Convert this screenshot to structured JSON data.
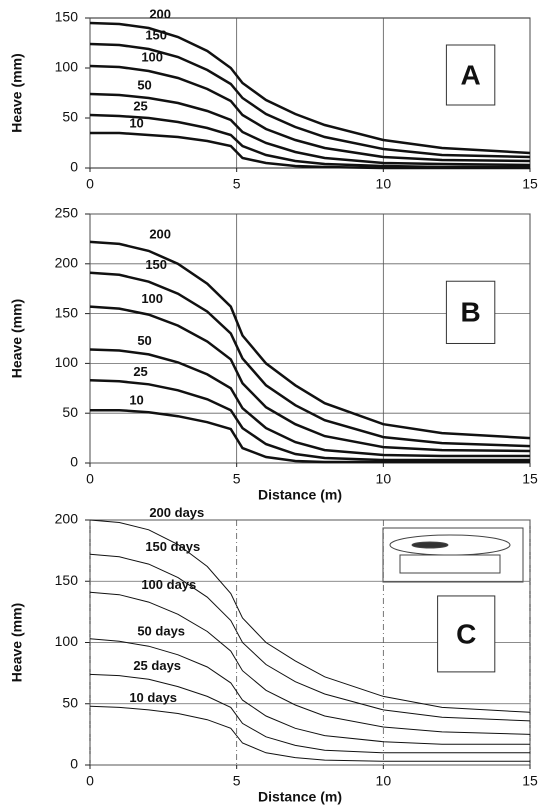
{
  "chart_data": [
    {
      "type": "line",
      "panel_label": "A",
      "ylabel": "Heave (mm)",
      "grid": "x",
      "line_width": 2.5,
      "color": "#111111",
      "x": [
        0,
        1,
        2,
        3,
        4,
        4.8,
        5.2,
        6,
        7,
        8,
        10,
        12,
        15
      ],
      "xlim": [
        0,
        15
      ],
      "xticks": [
        0,
        5,
        10,
        15
      ],
      "ylim": [
        0,
        150
      ],
      "yticks": [
        0,
        50,
        100,
        150
      ],
      "series": [
        {
          "name": "200",
          "values": [
            145,
            144,
            140,
            131,
            117,
            100,
            85,
            68,
            54,
            43,
            28,
            20,
            15
          ]
        },
        {
          "name": "150",
          "values": [
            124,
            123,
            119,
            111,
            98,
            84,
            70,
            54,
            41,
            31,
            19,
            13,
            11
          ]
        },
        {
          "name": "100",
          "values": [
            102,
            101,
            97,
            90,
            79,
            67,
            53,
            39,
            28,
            20,
            11,
            8,
            7
          ]
        },
        {
          "name": "50",
          "values": [
            74,
            73,
            70,
            65,
            57,
            48,
            36,
            25,
            16,
            10,
            5,
            4,
            3
          ]
        },
        {
          "name": "25",
          "values": [
            53,
            52,
            50,
            46,
            40,
            33,
            22,
            13,
            7,
            4,
            2,
            1,
            1
          ]
        },
        {
          "name": "10",
          "values": [
            35,
            35,
            33,
            31,
            27,
            22,
            10,
            5,
            2,
            1,
            0,
            0,
            0
          ]
        }
      ]
    },
    {
      "type": "line",
      "panel_label": "B",
      "ylabel": "Heave (mm)",
      "xlabel": "Distance (m)",
      "grid": "both",
      "line_width": 2.5,
      "color": "#111111",
      "x": [
        0,
        1,
        2,
        3,
        4,
        4.8,
        5.2,
        6,
        7,
        8,
        10,
        12,
        15
      ],
      "xlim": [
        0,
        15
      ],
      "xticks": [
        0,
        5,
        10,
        15
      ],
      "ylim": [
        0,
        250
      ],
      "yticks": [
        0,
        50,
        100,
        150,
        200,
        250
      ],
      "series": [
        {
          "name": "200",
          "values": [
            222,
            220,
            213,
            200,
            180,
            157,
            128,
            100,
            78,
            60,
            39,
            30,
            25
          ]
        },
        {
          "name": "150",
          "values": [
            191,
            189,
            182,
            170,
            152,
            130,
            105,
            78,
            58,
            43,
            26,
            20,
            17
          ]
        },
        {
          "name": "100",
          "values": [
            157,
            155,
            149,
            138,
            122,
            104,
            80,
            56,
            39,
            27,
            16,
            13,
            12
          ]
        },
        {
          "name": "50",
          "values": [
            114,
            113,
            109,
            101,
            89,
            75,
            55,
            35,
            21,
            13,
            8,
            7,
            7
          ]
        },
        {
          "name": "25",
          "values": [
            83,
            82,
            79,
            73,
            64,
            53,
            35,
            19,
            9,
            5,
            3,
            3,
            3
          ]
        },
        {
          "name": "10",
          "values": [
            53,
            53,
            51,
            47,
            41,
            34,
            15,
            6,
            2,
            1,
            1,
            1,
            1
          ]
        }
      ]
    },
    {
      "type": "line",
      "panel_label": "C",
      "ylabel": "Heave (mm)",
      "xlabel": "Distance (m)",
      "grid": "both",
      "line_width": 1,
      "color": "#111111",
      "x": [
        0,
        1,
        2,
        3,
        4,
        4.8,
        5.2,
        6,
        7,
        8,
        10,
        12,
        15
      ],
      "xlim": [
        0,
        15
      ],
      "xticks": [
        0,
        5,
        10,
        15
      ],
      "ylim": [
        0,
        200
      ],
      "yticks": [
        0,
        50,
        100,
        150,
        200
      ],
      "series": [
        {
          "name": "200 days",
          "values": [
            200,
            198,
            192,
            180,
            162,
            140,
            120,
            100,
            85,
            72,
            56,
            47,
            43
          ]
        },
        {
          "name": "150 days",
          "values": [
            172,
            170,
            164,
            153,
            137,
            118,
            100,
            82,
            68,
            58,
            45,
            39,
            36
          ]
        },
        {
          "name": "100 days",
          "values": [
            141,
            139,
            133,
            123,
            109,
            93,
            77,
            61,
            49,
            40,
            31,
            27,
            25
          ]
        },
        {
          "name": "50 days",
          "values": [
            103,
            101,
            97,
            90,
            80,
            67,
            53,
            40,
            30,
            24,
            19,
            17,
            17
          ]
        },
        {
          "name": "25 days",
          "values": [
            74,
            73,
            70,
            64,
            56,
            47,
            34,
            23,
            16,
            12,
            10,
            10,
            10
          ]
        },
        {
          "name": "10 days",
          "values": [
            48,
            47,
            45,
            42,
            37,
            30,
            18,
            10,
            6,
            4,
            3,
            3,
            3
          ]
        }
      ]
    }
  ]
}
